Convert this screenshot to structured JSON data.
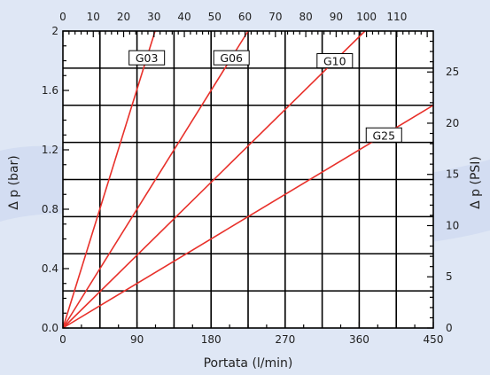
{
  "chart_data": {
    "type": "line",
    "xlabel": "Portata (l/min)",
    "ylabel": "Δ p (bar)",
    "top_ticks": [
      0,
      10,
      20,
      30,
      40,
      50,
      60,
      70,
      80,
      90,
      100,
      110
    ],
    "right_ticks": [
      0,
      5,
      10,
      15,
      20,
      25
    ],
    "right_label": "Δ p (PSI)",
    "bottom_ticks": [
      0,
      90,
      180,
      270,
      360,
      450
    ],
    "left_ticks": [
      "0.0",
      "0.4",
      "0.8",
      "1.2",
      "1.6",
      "2"
    ],
    "xlim": [
      0,
      450
    ],
    "ylim": [
      0,
      2
    ],
    "grid": true,
    "series": [
      {
        "name": "G03",
        "x": [
          0,
          112
        ],
        "y": [
          0,
          2
        ]
      },
      {
        "name": "G06",
        "x": [
          0,
          225
        ],
        "y": [
          0,
          2
        ]
      },
      {
        "name": "G10",
        "x": [
          0,
          367
        ],
        "y": [
          0,
          2
        ]
      },
      {
        "name": "G25",
        "x": [
          0,
          450
        ],
        "y": [
          0,
          1.5
        ]
      }
    ],
    "colors": {
      "series": "#e8302a",
      "grid": "#000000"
    }
  }
}
